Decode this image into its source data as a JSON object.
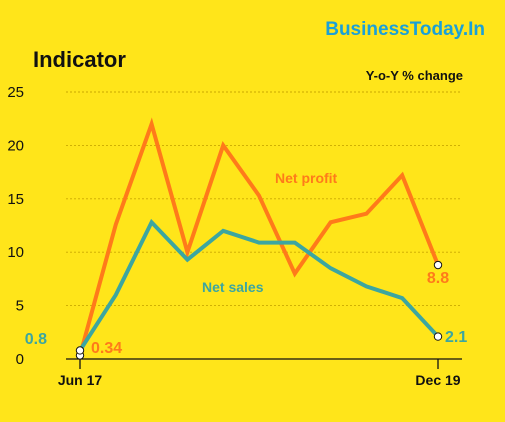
{
  "brand": {
    "text": "BusinessToday.In",
    "color": "#1AA0D8"
  },
  "chart_data": {
    "type": "line",
    "title": "Indicator",
    "ylabel": "Y-o-Y % change",
    "xlabel": "",
    "ylim": [
      0,
      25
    ],
    "yticks": [
      0,
      5,
      10,
      15,
      20,
      25
    ],
    "grid": true,
    "x_tick_labels": [
      {
        "index": 0,
        "label": "Jun 17"
      },
      {
        "index": 10,
        "label": "Dec 19"
      }
    ],
    "series": [
      {
        "name": "Net profit",
        "color": "#FF7A1A",
        "values": [
          0.34,
          12.6,
          22.0,
          10.0,
          20.0,
          15.3,
          8.0,
          12.8,
          13.6,
          17.2,
          8.8
        ],
        "label_point_index": 5,
        "end_labels": [
          {
            "index": 0,
            "text": "0.34"
          },
          {
            "index": 10,
            "text": "8.8"
          }
        ]
      },
      {
        "name": "Net sales",
        "color": "#3CA6A0",
        "values": [
          0.8,
          6.0,
          12.8,
          9.3,
          12.0,
          10.9,
          10.9,
          8.5,
          6.8,
          5.7,
          2.1
        ],
        "label_point_index": 4,
        "end_labels": [
          {
            "index": 0,
            "text": "0.8"
          },
          {
            "index": 10,
            "text": "2.1"
          }
        ]
      }
    ]
  }
}
